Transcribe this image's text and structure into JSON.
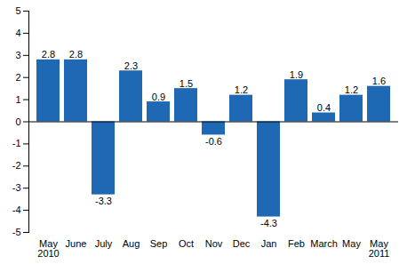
{
  "chart_data": {
    "type": "bar",
    "categories": [
      "May\n2010",
      "June",
      "July",
      "Aug",
      "Sep",
      "Oct",
      "Nov",
      "Dec",
      "Jan",
      "Feb",
      "March",
      "May",
      "May\n2011"
    ],
    "values": [
      2.8,
      2.8,
      -3.3,
      2.3,
      0.9,
      1.5,
      -0.6,
      1.2,
      -4.3,
      1.9,
      0.4,
      1.2,
      1.6
    ],
    "color": "#1f68b4",
    "ylim": [
      -5,
      5
    ],
    "yticks": [
      -5,
      -4,
      -3,
      -2,
      -1,
      0,
      1,
      2,
      3,
      4,
      5
    ],
    "grid": false,
    "data_labels": true
  }
}
